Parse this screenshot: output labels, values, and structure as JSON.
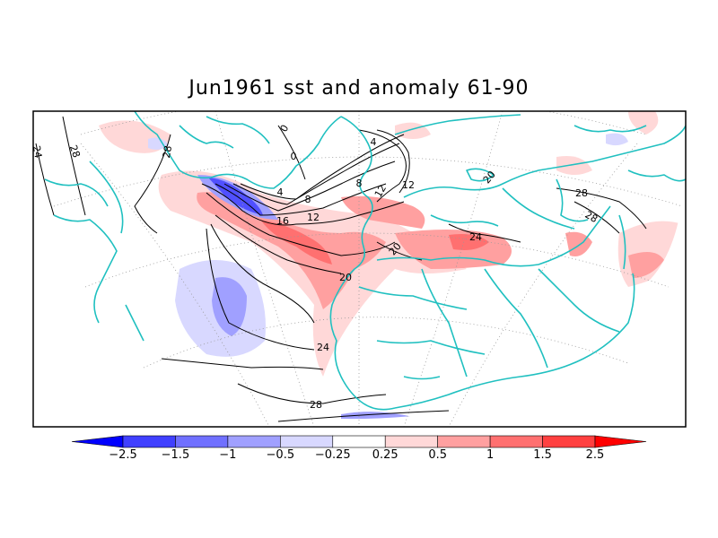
{
  "title": "Jun1961 sst and anomaly 61-90",
  "colors": {
    "coastline": "#20c0c0",
    "contour": "#000000",
    "frame": "#000000"
  },
  "contour_labels": [
    "24",
    "28",
    "28",
    "0",
    "0",
    "4",
    "4",
    "8",
    "8",
    "12",
    "12",
    "12",
    "16",
    "20",
    "20",
    "24",
    "28",
    "24",
    "20",
    "28",
    "28"
  ],
  "colorbar": {
    "tick_labels": [
      "−2.5",
      "−1.5",
      "−1",
      "−0.5",
      "−0.25",
      "0.25",
      "0.5",
      "1",
      "1.5",
      "2.5"
    ],
    "colors": [
      "#0000ff",
      "#4040ff",
      "#7070ff",
      "#a0a0ff",
      "#d8d8ff",
      "#ffffff",
      "#ffd8d8",
      "#ffa0a0",
      "#ff7070",
      "#ff4040",
      "#ff0000"
    ]
  }
}
